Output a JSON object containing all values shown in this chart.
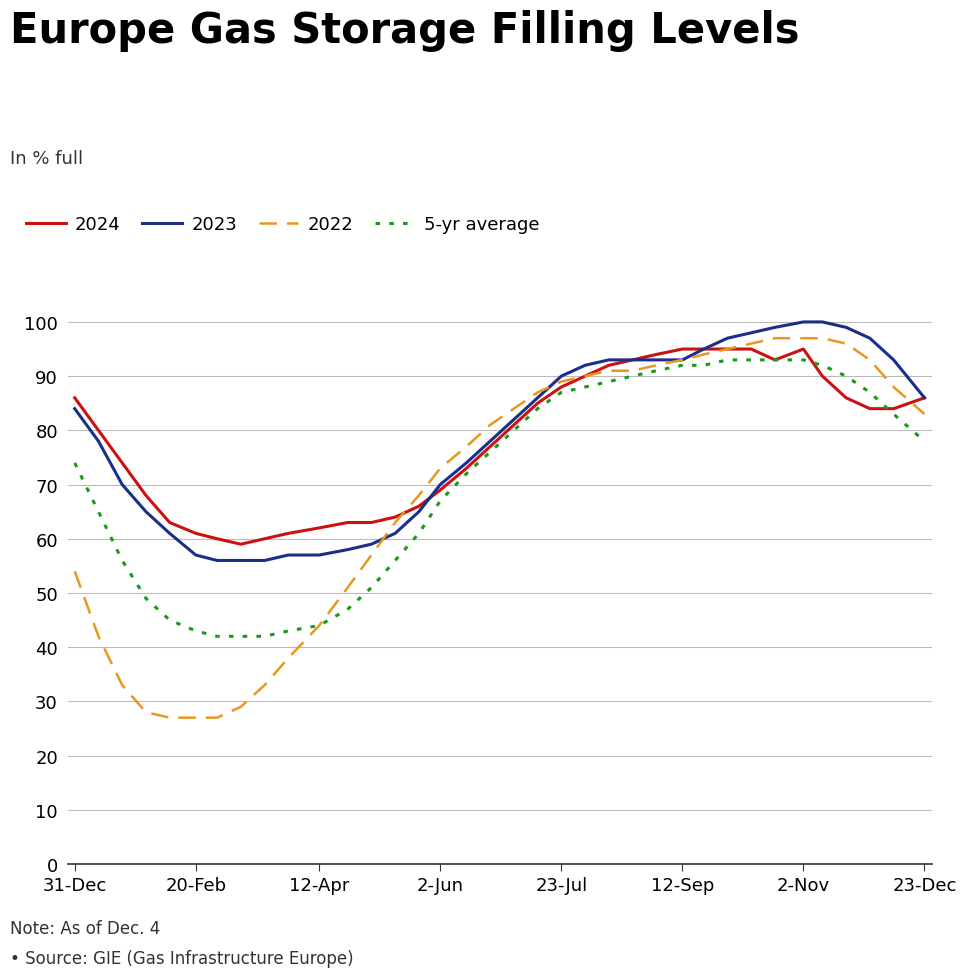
{
  "title": "Europe Gas Storage Filling Levels",
  "ylabel": "In % full",
  "note": "Note: As of Dec. 4",
  "source": "• Source: GIE (Gas Infrastructure Europe)",
  "background_color": "#ffffff",
  "title_fontsize": 30,
  "ylabel_fontsize": 13,
  "tick_fontsize": 13,
  "x_tick_labels": [
    "31-Dec",
    "20-Feb",
    "12-Apr",
    "2-Jun",
    "23-Jul",
    "12-Sep",
    "2-Nov",
    "23-Dec"
  ],
  "x_tick_positions": [
    0,
    51,
    103,
    154,
    205,
    256,
    307,
    358
  ],
  "ylim": [
    0,
    107
  ],
  "yticks": [
    0,
    10,
    20,
    30,
    40,
    50,
    60,
    70,
    80,
    90,
    100
  ],
  "series": {
    "2024": {
      "color": "#cc1111",
      "linestyle": "solid",
      "linewidth": 2.2,
      "x": [
        0,
        10,
        20,
        30,
        40,
        51,
        60,
        70,
        80,
        90,
        103,
        115,
        125,
        135,
        145,
        154,
        165,
        175,
        185,
        195,
        205,
        215,
        225,
        235,
        245,
        256,
        265,
        275,
        285,
        295,
        307,
        315,
        325,
        335,
        345,
        358
      ],
      "y": [
        86,
        80,
        74,
        68,
        63,
        61,
        60,
        59,
        60,
        61,
        62,
        63,
        63,
        64,
        66,
        69,
        73,
        77,
        81,
        85,
        88,
        90,
        92,
        93,
        94,
        95,
        95,
        95,
        95,
        93,
        95,
        90,
        86,
        84,
        84,
        86
      ]
    },
    "2023": {
      "color": "#1a2f8a",
      "linestyle": "solid",
      "linewidth": 2.2,
      "x": [
        0,
        10,
        20,
        30,
        40,
        51,
        60,
        70,
        80,
        90,
        103,
        115,
        125,
        135,
        145,
        154,
        165,
        175,
        185,
        195,
        205,
        215,
        225,
        235,
        245,
        256,
        265,
        275,
        285,
        295,
        307,
        315,
        325,
        335,
        345,
        358
      ],
      "y": [
        84,
        78,
        70,
        65,
        61,
        57,
        56,
        56,
        56,
        57,
        57,
        58,
        59,
        61,
        65,
        70,
        74,
        78,
        82,
        86,
        90,
        92,
        93,
        93,
        93,
        93,
        95,
        97,
        98,
        99,
        100,
        100,
        99,
        97,
        93,
        86
      ]
    },
    "2022": {
      "color": "#e8981e",
      "linestyle": "dashed",
      "linewidth": 1.8,
      "x": [
        0,
        10,
        20,
        30,
        40,
        51,
        60,
        70,
        80,
        90,
        103,
        115,
        125,
        135,
        145,
        154,
        165,
        175,
        185,
        195,
        205,
        215,
        225,
        235,
        245,
        256,
        265,
        275,
        285,
        295,
        307,
        315,
        325,
        335,
        345,
        358
      ],
      "y": [
        54,
        42,
        33,
        28,
        27,
        27,
        27,
        29,
        33,
        38,
        44,
        51,
        57,
        63,
        68,
        73,
        77,
        81,
        84,
        87,
        89,
        90,
        91,
        91,
        92,
        93,
        94,
        95,
        96,
        97,
        97,
        97,
        96,
        93,
        88,
        83
      ]
    },
    "5yr_avg": {
      "color": "#1a9a1a",
      "linestyle": "dotted",
      "linewidth": 2.2,
      "x": [
        0,
        10,
        20,
        30,
        40,
        51,
        60,
        70,
        80,
        90,
        103,
        115,
        125,
        135,
        145,
        154,
        165,
        175,
        185,
        195,
        205,
        215,
        225,
        235,
        245,
        256,
        265,
        275,
        285,
        295,
        307,
        315,
        325,
        335,
        345,
        358
      ],
      "y": [
        74,
        65,
        56,
        49,
        45,
        43,
        42,
        42,
        42,
        43,
        44,
        47,
        51,
        56,
        61,
        67,
        72,
        76,
        80,
        84,
        87,
        88,
        89,
        90,
        91,
        92,
        92,
        93,
        93,
        93,
        93,
        92,
        90,
        87,
        83,
        78
      ]
    }
  },
  "legend_labels": [
    "2024",
    "2023",
    "2022",
    "5-yr average"
  ],
  "legend_fontsize": 13
}
